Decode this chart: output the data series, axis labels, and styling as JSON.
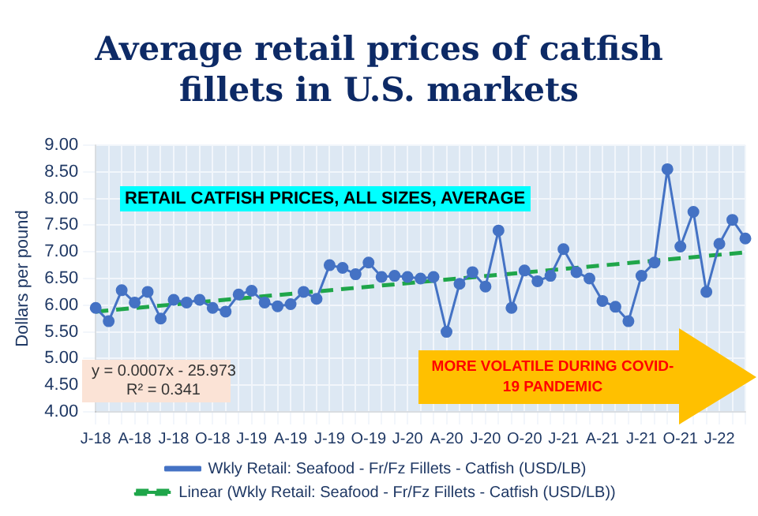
{
  "chart_data": {
    "type": "line",
    "title": "Average retail prices of catfish fillets in U.S. markets",
    "ylabel": "Dollars per pound",
    "categories": [
      "J-18",
      null,
      null,
      "A-18",
      null,
      null,
      "J-18",
      null,
      null,
      "O-18",
      null,
      null,
      "J-19",
      null,
      null,
      "A-19",
      null,
      null,
      "J-19",
      null,
      null,
      "O-19",
      null,
      null,
      "J-20",
      null,
      null,
      "A-20",
      null,
      null,
      "J-20",
      null,
      null,
      "O-20",
      null,
      null,
      "J-21",
      null,
      null,
      "A-21",
      null,
      null,
      "J-21",
      null,
      null,
      "O-21",
      null,
      null,
      "J-22",
      null,
      null
    ],
    "series": [
      {
        "name": "Wkly Retail: Seafood - Fr/Fz Fillets - Catfish (USD/LB)",
        "color": "#4472c4",
        "marker": "circle",
        "line_style": "solid",
        "values": [
          5.95,
          5.7,
          6.28,
          6.05,
          6.25,
          5.75,
          6.1,
          6.05,
          6.1,
          5.95,
          5.88,
          6.2,
          6.27,
          6.05,
          5.98,
          6.02,
          6.25,
          6.12,
          6.75,
          6.7,
          6.58,
          6.8,
          6.53,
          6.55,
          6.53,
          6.5,
          6.53,
          5.5,
          6.4,
          6.62,
          6.35,
          7.4,
          5.95,
          6.65,
          6.45,
          6.55,
          7.05,
          6.62,
          6.5,
          6.08,
          5.97,
          5.7,
          6.55,
          6.8,
          8.55,
          7.1,
          7.75,
          6.25,
          7.15,
          7.6,
          7.25
        ]
      },
      {
        "name": "Linear (Wkly Retail: Seafood - Fr/Fz Fillets - Catfish (USD/LB))",
        "color": "#1fa64a",
        "marker": "none",
        "line_style": "dashed",
        "values": [
          5.88,
          null,
          null,
          null,
          null,
          null,
          null,
          null,
          null,
          null,
          null,
          null,
          null,
          null,
          null,
          null,
          null,
          null,
          null,
          null,
          null,
          null,
          null,
          null,
          null,
          null,
          null,
          null,
          null,
          null,
          null,
          null,
          null,
          null,
          null,
          null,
          null,
          null,
          null,
          null,
          null,
          null,
          null,
          null,
          null,
          null,
          null,
          null,
          null,
          null,
          6.99
        ]
      }
    ],
    "ylim": [
      4,
      9
    ],
    "yticks": [
      {
        "value": 4,
        "label": "4.00"
      },
      {
        "value": 4.5,
        "label": "4.50"
      },
      {
        "value": 5,
        "label": "5.00"
      },
      {
        "value": 5.5,
        "label": "5.50"
      },
      {
        "value": 6,
        "label": "6.00"
      },
      {
        "value": 6.5,
        "label": "6.50"
      },
      {
        "value": 7,
        "label": "7.00"
      },
      {
        "value": 7.5,
        "label": "7.50"
      },
      {
        "value": 8,
        "label": "8.00"
      },
      {
        "value": 8.5,
        "label": "8.50"
      },
      {
        "value": 9,
        "label": "9.00"
      }
    ],
    "grid": true,
    "legend": "bottom",
    "annotations": [
      "RETAIL CATFISH PRICES, ALL SIZES, AVERAGE",
      "y = 0.0007x - 25.973",
      "R² = 0.341",
      "MORE VOLATILE DURING COVID-19 PANDEMIC"
    ]
  }
}
